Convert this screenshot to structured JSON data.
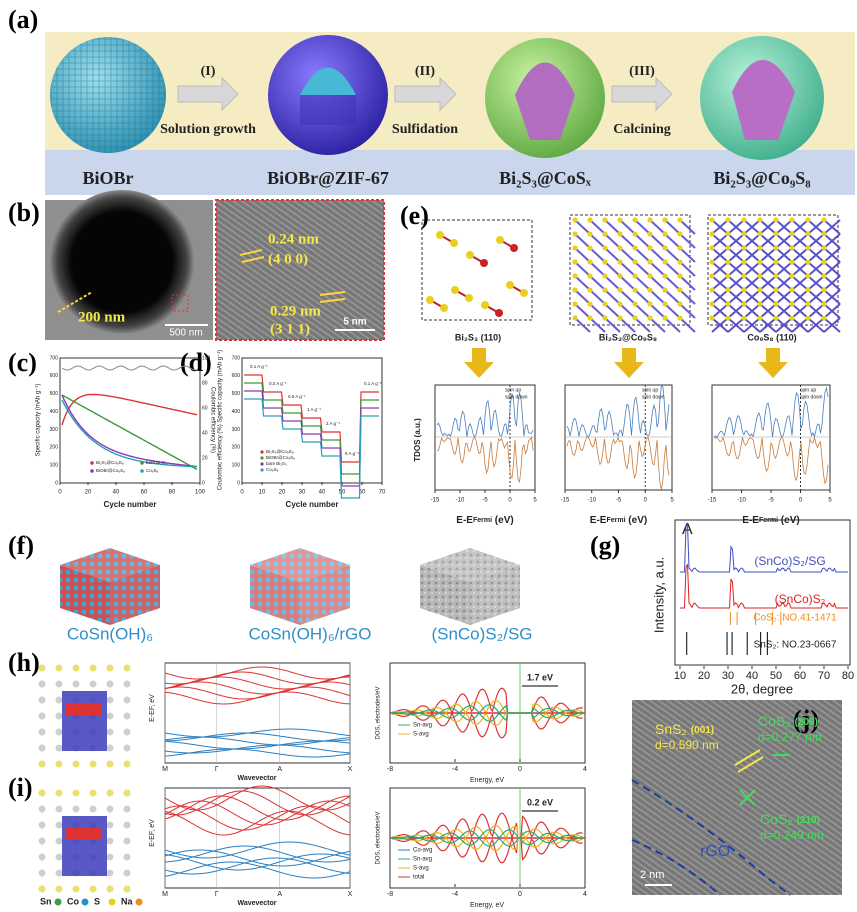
{
  "panel_a": {
    "label": "(a)",
    "steps": [
      {
        "numeral": "(I)",
        "text": "Solution growth"
      },
      {
        "numeral": "(II)",
        "text": "Sulfidation"
      },
      {
        "numeral": "(III)",
        "text": "Calcining"
      }
    ],
    "materials": [
      "BiOBr",
      "BiOBr@ZIF-67",
      "Bi₂S₃@CoSₓ",
      "Bi₂S₃@Co₉S₈"
    ]
  },
  "panel_b": {
    "label": "(b)",
    "particle_size": "200 nm",
    "scale_bar_left": "500 nm",
    "d1": "0.24 nm",
    "plane1": "(4 0 0)",
    "d2": "0.29 nm",
    "plane2": "(3 1 1)",
    "scale_bar_right": "5 nm"
  },
  "panel_c": {
    "label": "(c)",
    "y_label": "Specific capacity (mAh g⁻¹)",
    "y2_label": "Coulombic efficiency (%)",
    "x_label": "Cycle number",
    "xticks": [
      0,
      20,
      40,
      60,
      80,
      100
    ],
    "yticks": [
      0,
      100,
      200,
      300,
      400,
      500,
      600,
      700
    ],
    "y2ticks": [
      0,
      20,
      40,
      60,
      80,
      100
    ],
    "legend": [
      "Bi₂S₃@Co₉S₈",
      "bare Bi₂S₃",
      "BiOBr@Co₉S₈",
      "Co₉S₈"
    ]
  },
  "panel_d": {
    "label": "(d)",
    "y_label": "Coulombic efficiency (%) Specific capacity (mAh g⁻¹)",
    "x_label": "Cycle number",
    "xticks": [
      0,
      10,
      20,
      30,
      40,
      50,
      60,
      70
    ],
    "yticks": [
      0,
      100,
      200,
      300,
      400,
      500,
      600,
      700
    ],
    "rates": [
      "0.1 A g⁻¹",
      "0.2 A g⁻¹",
      "0.5 A g⁻¹",
      "1 A g⁻¹",
      "2 A g⁻¹",
      "5 A g⁻¹",
      "0.1 A g⁻¹"
    ],
    "legend": [
      "Bi₂S₃@Co₉S₈",
      "BiOBr@Co₉S₈",
      "bare Bi₂S₃",
      "Co₉S₈"
    ]
  },
  "panel_e": {
    "label": "(e)",
    "structures": [
      "Bi₂S₃ (110)",
      "Bi₂S₃@Co₉S₈",
      "Co₉S₈ (110)"
    ],
    "y_label": "TDOS (a.u.)",
    "x_label": {
      "main": "E-E",
      "sub": "Fermi",
      "unit": " (eV)"
    },
    "legend": [
      "spin up",
      "spin down"
    ],
    "xticks": [
      -15,
      -10,
      -5,
      0,
      5
    ]
  },
  "panel_f": {
    "label": "(f)",
    "items": [
      "CoSn(OH)₆",
      "CoSn(OH)₆/rGO",
      "(SnCo)S₂/SG"
    ]
  },
  "panel_g": {
    "label": "(g)",
    "corner": "A",
    "series": [
      "(SnCo)S₂/SG",
      "(SnCo)S₂",
      "CoS₂: NO.41-1471",
      "SnS₂: NO.23-0667"
    ],
    "y_label": "Intensity, a.u.",
    "x_label": "2θ, degree",
    "xticks": [
      10,
      20,
      30,
      40,
      50,
      60,
      70,
      80
    ]
  },
  "panel_h": {
    "label": "(h)",
    "y_label": "E-EF, eV",
    "x_label": "Wavevector",
    "kpoints": [
      "M",
      "Γ",
      "A",
      "X"
    ],
    "gap": "1.7 eV",
    "dos_y_label": "DOS, electrodes/eV",
    "dos_x_label": "Energy, eV",
    "dos_legend": [
      "Sn-avg",
      "S-avg"
    ],
    "dos_xticks": [
      -8,
      -4,
      0,
      4
    ]
  },
  "panel_i": {
    "label": "(i)",
    "y_label": "E-EF, eV",
    "x_label": "Wavevector",
    "kpoints": [
      "M",
      "Γ",
      "A",
      "X"
    ],
    "gap": "0.2 eV",
    "dos_y_label": "DOS, electrodes/eV",
    "dos_x_label": "Energy, eV",
    "dos_legend": [
      "Co-avg",
      "Sn-avg",
      "S-avg",
      "total"
    ],
    "dos_xticks": [
      -8,
      -4,
      0,
      4
    ],
    "atoms": [
      "Sn",
      "Co",
      "S",
      "Na"
    ]
  },
  "panel_j": {
    "label": "(j)",
    "phase1": "SnS₂",
    "plane1": "(001)",
    "d1": "d=0.590 nm",
    "phase2": "CoS₂",
    "plane2": "(200)",
    "d2": "d=0.277 nm",
    "phase3": "CoS₂",
    "plane3": "(210)",
    "d3": "d=0.249 nm",
    "substrate": "rGO",
    "scale_bar": "2 nm"
  }
}
